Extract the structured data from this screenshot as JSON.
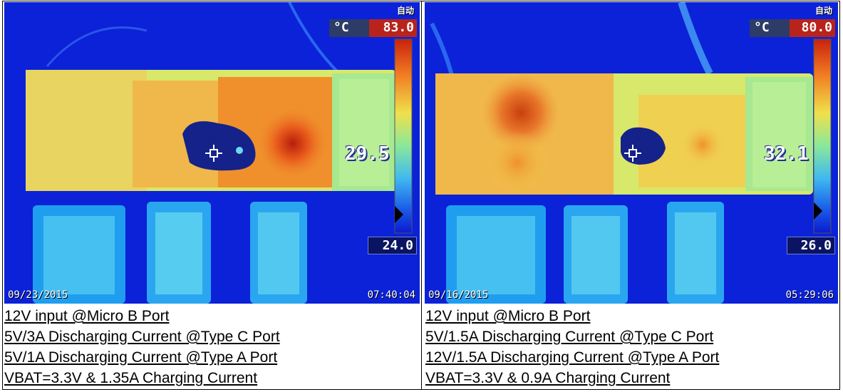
{
  "panels": [
    {
      "mode_label": "自动",
      "unit": "°C",
      "max_temp": "83.0",
      "min_temp": "24.0",
      "spot_temp": "29.5",
      "date": "09/23/2015",
      "time": "07:40:04",
      "caption": [
        "12V input @Micro B Port",
        "5V/3A Discharging Current @Type C Port",
        "5V/1A Discharging Current @Type A Port",
        "VBAT=3.3V & 1.35A Charging Current"
      ]
    },
    {
      "mode_label": "自动",
      "unit": "°C",
      "max_temp": "80.0",
      "min_temp": "26.0",
      "spot_temp": "32.1",
      "date": "09/16/2015",
      "time": "05:29:06",
      "caption": [
        "12V input @Micro B Port",
        "5V/1.5A Discharging Current @Type C Port",
        "12V/1.5A Discharging Current @Type A Port",
        "VBAT=3.3V & 0.9A Charging Current"
      ]
    }
  ],
  "palette": {
    "cold": "#0a1fd8",
    "cool": "#1f8ff0",
    "mid": "#6fd8f0",
    "warm": "#e8e84a",
    "hot": "#f08a2a",
    "hottest": "#c9220e"
  }
}
